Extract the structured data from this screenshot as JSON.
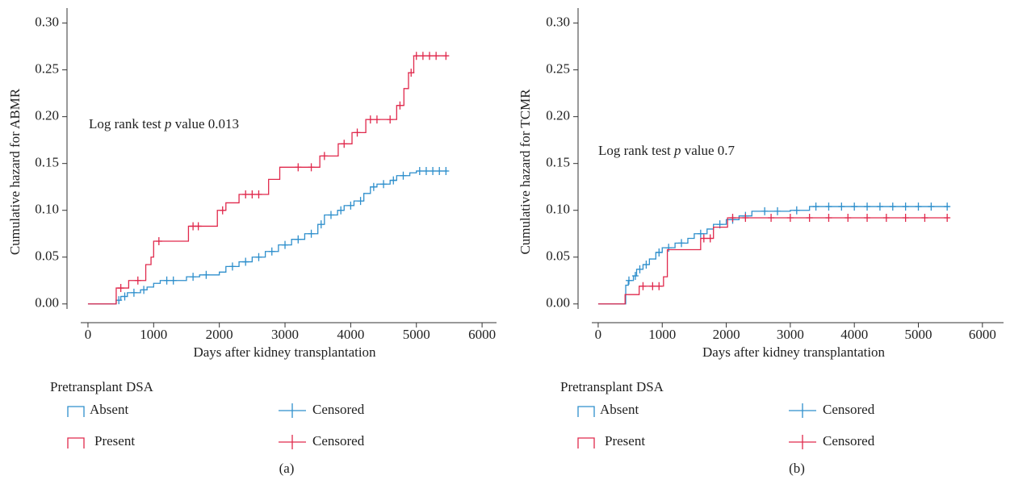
{
  "chart_data": [
    {
      "type": "step",
      "panel_label": "(a)",
      "y_label": "Cumulative hazard for ABMR",
      "x_label": "Days after kidney transplantation",
      "annotation": {
        "prefix": "Log rank test",
        "italic": "p",
        "suffix": "value 0.013"
      },
      "legend_title": "Pretransplant DSA",
      "xlim": [
        -110,
        6220
      ],
      "ylim": [
        -0.02,
        0.316
      ],
      "xticks": [
        0,
        1000,
        2000,
        3000,
        4000,
        5000,
        6000
      ],
      "yticks": [
        {
          "value": 0,
          "label": "0.00"
        },
        {
          "value": 0.05,
          "label": "0.05"
        },
        {
          "value": 0.1,
          "label": "0.10"
        },
        {
          "value": 0.15,
          "label": "0.15"
        },
        {
          "value": 0.2,
          "label": "0.20"
        },
        {
          "value": 0.25,
          "label": "0.25"
        },
        {
          "value": 0.3,
          "label": "0.30"
        }
      ],
      "series": [
        {
          "name": "Absent",
          "color": "#2e8fcc",
          "censor_label": "Censored",
          "x": [
            0,
            430,
            500,
            600,
            800,
            900,
            1000,
            1100,
            1500,
            1700,
            2000,
            2100,
            2300,
            2500,
            2700,
            2900,
            3100,
            3300,
            3500,
            3600,
            3800,
            3900,
            4050,
            4200,
            4300,
            4400,
            4600,
            4700,
            4900,
            5000,
            5480
          ],
          "values": [
            0,
            0.004,
            0.008,
            0.012,
            0.015,
            0.018,
            0.022,
            0.025,
            0.029,
            0.031,
            0.034,
            0.04,
            0.045,
            0.05,
            0.056,
            0.063,
            0.069,
            0.075,
            0.085,
            0.095,
            0.1,
            0.105,
            0.11,
            0.118,
            0.125,
            0.128,
            0.132,
            0.137,
            0.14,
            0.142,
            0.142
          ],
          "censored": {
            "x": [
              470,
              560,
              700,
              850,
              1200,
              1300,
              1600,
              1800,
              2200,
              2400,
              2600,
              2800,
              3000,
              3200,
              3400,
              3550,
              3700,
              3850,
              4000,
              4150,
              4350,
              4500,
              4650,
              4800,
              5050,
              5150,
              5250,
              5350,
              5450
            ],
            "values": [
              0.004,
              0.008,
              0.012,
              0.015,
              0.025,
              0.025,
              0.029,
              0.031,
              0.04,
              0.045,
              0.05,
              0.056,
              0.063,
              0.069,
              0.075,
              0.085,
              0.095,
              0.1,
              0.105,
              0.11,
              0.125,
              0.128,
              0.132,
              0.137,
              0.142,
              0.142,
              0.142,
              0.142,
              0.142
            ]
          }
        },
        {
          "name": "Present",
          "color": "#e0294c",
          "censor_label": "Censored",
          "x": [
            0,
            430,
            620,
            880,
            960,
            1000,
            1530,
            1970,
            2100,
            2300,
            2750,
            2920,
            3530,
            3810,
            4020,
            4230,
            4700,
            4810,
            4880,
            4960,
            5480
          ],
          "values": [
            0,
            0.017,
            0.025,
            0.042,
            0.05,
            0.067,
            0.083,
            0.1,
            0.108,
            0.117,
            0.133,
            0.146,
            0.158,
            0.171,
            0.183,
            0.197,
            0.212,
            0.23,
            0.247,
            0.265,
            0.265
          ],
          "censored": {
            "x": [
              500,
              760,
              1080,
              1600,
              1680,
              2050,
              2400,
              2500,
              2600,
              3200,
              3400,
              3600,
              3900,
              4100,
              4300,
              4400,
              4600,
              4750,
              4920,
              5000,
              5100,
              5200,
              5300,
              5450
            ],
            "values": [
              0.017,
              0.025,
              0.067,
              0.083,
              0.083,
              0.1,
              0.117,
              0.117,
              0.117,
              0.146,
              0.146,
              0.158,
              0.171,
              0.183,
              0.197,
              0.197,
              0.197,
              0.212,
              0.247,
              0.265,
              0.265,
              0.265,
              0.265,
              0.265
            ]
          }
        }
      ]
    },
    {
      "type": "step",
      "panel_label": "(b)",
      "y_label": "Cumulative hazard for TCMR",
      "x_label": "Days after kidney transplantation",
      "annotation": {
        "prefix": "Log rank test",
        "italic": "p",
        "suffix": "value 0.7"
      },
      "legend_title": "Pretransplant DSA",
      "xlim": [
        -100,
        6330
      ],
      "ylim": [
        -0.02,
        0.316
      ],
      "xticks": [
        0,
        1000,
        2000,
        3000,
        4000,
        5000,
        6000
      ],
      "yticks": [
        {
          "value": 0,
          "label": "0.00"
        },
        {
          "value": 0.05,
          "label": "0.05"
        },
        {
          "value": 0.1,
          "label": "0.10"
        },
        {
          "value": 0.15,
          "label": "0.15"
        },
        {
          "value": 0.2,
          "label": "0.20"
        },
        {
          "value": 0.25,
          "label": "0.25"
        },
        {
          "value": 0.3,
          "label": "0.30"
        }
      ],
      "series": [
        {
          "name": "Absent",
          "color": "#2e8fcc",
          "censor_label": "Censored",
          "x": [
            0,
            430,
            470,
            550,
            600,
            700,
            800,
            900,
            1000,
            1200,
            1400,
            1500,
            1700,
            1800,
            2000,
            2200,
            2400,
            3000,
            3300,
            5480
          ],
          "values": [
            0,
            0.02,
            0.025,
            0.03,
            0.037,
            0.042,
            0.048,
            0.055,
            0.06,
            0.065,
            0.07,
            0.075,
            0.08,
            0.085,
            0.09,
            0.094,
            0.099,
            0.1,
            0.104,
            0.104
          ],
          "censored": {
            "x": [
              480,
              580,
              650,
              750,
              950,
              1100,
              1300,
              1600,
              1900,
              2100,
              2300,
              2600,
              2800,
              3100,
              3400,
              3600,
              3800,
              4000,
              4200,
              4400,
              4600,
              4800,
              5000,
              5200,
              5450
            ],
            "values": [
              0.025,
              0.03,
              0.037,
              0.042,
              0.055,
              0.06,
              0.065,
              0.075,
              0.085,
              0.09,
              0.094,
              0.099,
              0.099,
              0.1,
              0.104,
              0.104,
              0.104,
              0.104,
              0.104,
              0.104,
              0.104,
              0.104,
              0.104,
              0.104,
              0.104
            ]
          }
        },
        {
          "name": "Present",
          "color": "#e0294c",
          "censor_label": "Censored",
          "x": [
            0,
            420,
            640,
            1020,
            1080,
            1600,
            1800,
            2020,
            5480
          ],
          "values": [
            0,
            0.01,
            0.019,
            0.029,
            0.058,
            0.07,
            0.082,
            0.092,
            0.092
          ],
          "censored": {
            "x": [
              700,
              850,
              950,
              1650,
              1750,
              2100,
              2300,
              2700,
              3000,
              3300,
              3600,
              3900,
              4200,
              4500,
              4800,
              5100,
              5450
            ],
            "values": [
              0.019,
              0.019,
              0.019,
              0.07,
              0.07,
              0.092,
              0.092,
              0.092,
              0.092,
              0.092,
              0.092,
              0.092,
              0.092,
              0.092,
              0.092,
              0.092,
              0.092
            ]
          }
        }
      ]
    }
  ]
}
